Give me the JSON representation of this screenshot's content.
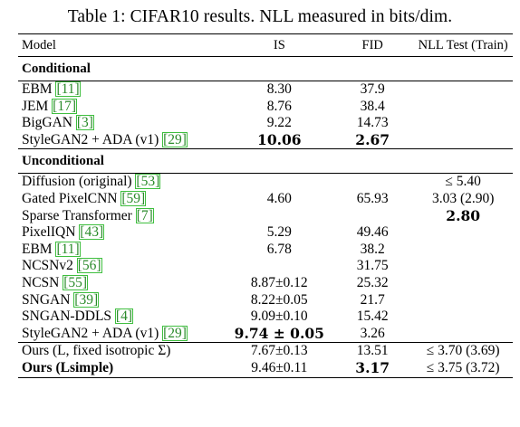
{
  "caption": "Table 1: CIFAR10 results. NLL measured in bits/dim.",
  "headers": {
    "model": "Model",
    "is": "IS",
    "fid": "FID",
    "nll": "NLL Test (Train)"
  },
  "sections": {
    "conditional": "Conditional",
    "unconditional": "Unconditional"
  },
  "conditional_rows": [
    {
      "name": "EBM",
      "ref": "[11]",
      "is": "8.30",
      "fid": "37.9",
      "nll": ""
    },
    {
      "name": "JEM",
      "ref": "[17]",
      "is": "8.76",
      "fid": "38.4",
      "nll": ""
    },
    {
      "name": "BigGAN",
      "ref": "[3]",
      "is": "9.22",
      "fid": "14.73",
      "nll": ""
    },
    {
      "name": "StyleGAN2 + ADA (v1)",
      "ref": "[29]",
      "is": "10.06",
      "fid": "2.67",
      "nll": ""
    }
  ],
  "unconditional_rows": [
    {
      "name": "Diffusion (original)",
      "ref": "[53]",
      "is": "",
      "fid": "",
      "nll": "≤ 5.40"
    },
    {
      "name": "Gated PixelCNN",
      "ref": "[59]",
      "is": "4.60",
      "fid": "65.93",
      "nll": "3.03 (2.90)"
    },
    {
      "name": "Sparse Transformer",
      "ref": "[7]",
      "is": "",
      "fid": "",
      "nll": "2.80"
    },
    {
      "name": "PixelIQN",
      "ref": "[43]",
      "is": "5.29",
      "fid": "49.46",
      "nll": ""
    },
    {
      "name": "EBM",
      "ref": "[11]",
      "is": "6.78",
      "fid": "38.2",
      "nll": ""
    },
    {
      "name": "NCSNv2",
      "ref": "[56]",
      "is": "",
      "fid": "31.75",
      "nll": ""
    },
    {
      "name": "NCSN",
      "ref": "[55]",
      "is": "8.87±0.12",
      "fid": "25.32",
      "nll": ""
    },
    {
      "name": "SNGAN",
      "ref": "[39]",
      "is": "8.22±0.05",
      "fid": "21.7",
      "nll": ""
    },
    {
      "name": "SNGAN-DDLS",
      "ref": "[4]",
      "is": "9.09±0.10",
      "fid": "15.42",
      "nll": ""
    },
    {
      "name": "StyleGAN2 + ADA (v1)",
      "ref": "[29]",
      "is": "9.74 ± 0.05",
      "fid": "3.26",
      "nll": ""
    },
    {
      "name": "Ours (L, fixed isotropic Σ)",
      "ref": "",
      "is": "7.67±0.13",
      "fid": "13.51",
      "nll": "≤ 3.70 (3.69)"
    },
    {
      "name": "Ours (Lsimple)",
      "ref": "",
      "is": "9.46±0.11",
      "fid": "3.17",
      "nll": "≤ 3.75 (3.72)"
    }
  ]
}
